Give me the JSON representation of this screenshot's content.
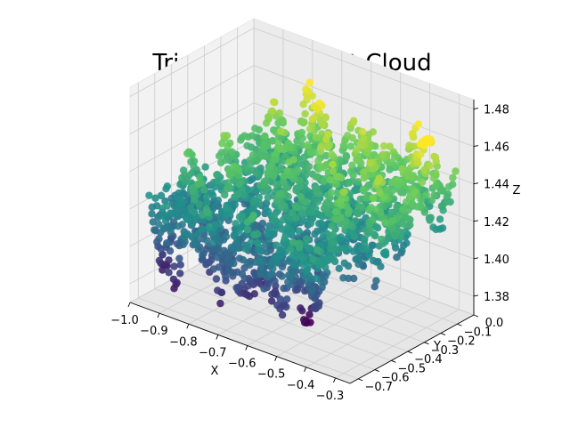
{
  "chart_data": {
    "type": "scatter",
    "title": "Trimmed 3D Point Cloud",
    "xlabel": "X",
    "ylabel": "Y",
    "zlabel": "Z",
    "xlim": [
      -1.0,
      -0.25
    ],
    "ylim": [
      -0.75,
      0.0
    ],
    "zlim": [
      1.37,
      1.485
    ],
    "x_ticks": [
      "−1.0",
      "−0.9",
      "−0.8",
      "−0.7",
      "−0.6",
      "−0.5",
      "−0.4",
      "−0.3"
    ],
    "y_ticks": [
      "0.0",
      "−0.1",
      "−0.2",
      "−0.3",
      "−0.4",
      "−0.5",
      "−0.6",
      "−0.7"
    ],
    "z_ticks": [
      "1.38",
      "1.40",
      "1.42",
      "1.44",
      "1.46",
      "1.48"
    ],
    "x_range": [
      -1.0,
      -0.28
    ],
    "y_range": [
      -0.72,
      -0.03
    ],
    "z_range": [
      1.375,
      1.465
    ],
    "colormap": "viridis",
    "colormap_stops": [
      "#440154",
      "#3b528b",
      "#21918c",
      "#5ec962",
      "#fde725"
    ],
    "grid": true,
    "pane_color": "#f2f2f2",
    "grid_color": "#cccccc"
  }
}
